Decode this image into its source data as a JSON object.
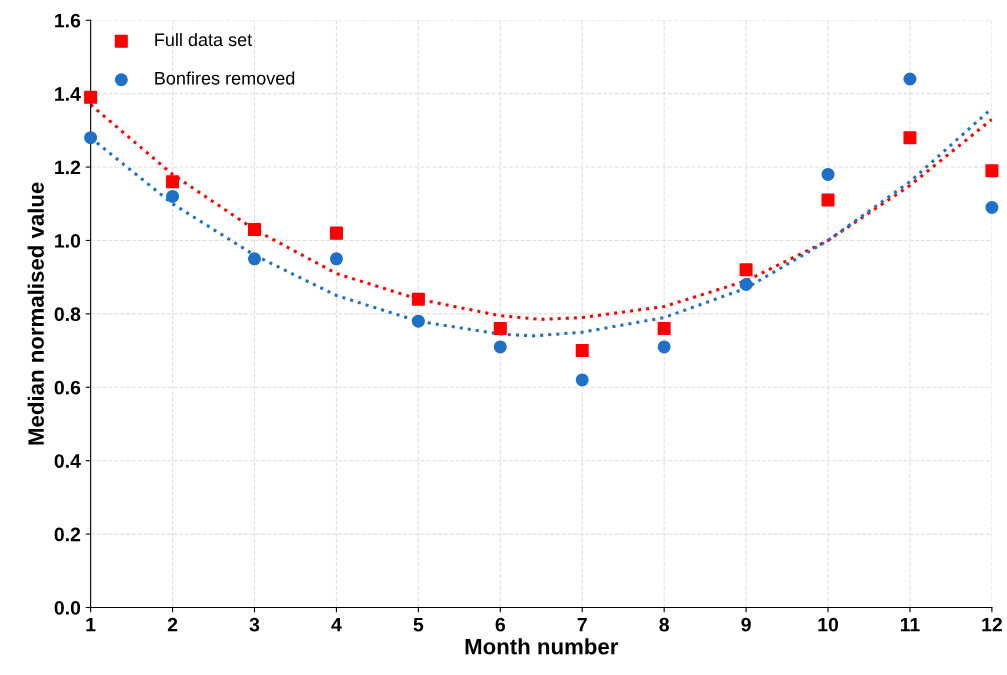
{
  "chart_data": {
    "type": "scatter",
    "xlabel": "Month number",
    "ylabel": "Median normalised value",
    "x": [
      1,
      2,
      3,
      4,
      5,
      6,
      7,
      8,
      9,
      10,
      11,
      12
    ],
    "series": [
      {
        "name": "Full data set",
        "color": "#ff0000",
        "marker": "square",
        "values": [
          1.39,
          1.16,
          1.03,
          1.02,
          0.84,
          0.76,
          0.7,
          0.76,
          0.92,
          1.11,
          1.28,
          1.19
        ]
      },
      {
        "name": "Bonfires removed",
        "color": "#1f70c8",
        "marker": "circle",
        "values": [
          1.28,
          1.12,
          0.95,
          0.95,
          0.78,
          0.71,
          0.62,
          0.71,
          0.88,
          1.18,
          1.44,
          1.09
        ]
      },
      {
        "type": "line",
        "color": "#ff0000",
        "line_style": "dotted",
        "marker": "none",
        "x": [
          1,
          2,
          3,
          4,
          5,
          6,
          6.5,
          7,
          8,
          9,
          10,
          11,
          12
        ],
        "values": [
          1.37,
          1.18,
          1.03,
          0.91,
          0.84,
          0.795,
          0.785,
          0.79,
          0.82,
          0.89,
          1.0,
          1.15,
          1.33
        ]
      },
      {
        "type": "line",
        "color": "#1f70c8",
        "line_style": "dotted",
        "marker": "none",
        "x": [
          1,
          2,
          3,
          4,
          5,
          6,
          6.4,
          7,
          8,
          9,
          10,
          11,
          12
        ],
        "values": [
          1.28,
          1.1,
          0.96,
          0.85,
          0.78,
          0.745,
          0.74,
          0.75,
          0.79,
          0.87,
          1.0,
          1.16,
          1.36
        ]
      }
    ],
    "xlim": [
      1,
      12
    ],
    "xticks": [
      1,
      2,
      3,
      4,
      5,
      6,
      7,
      8,
      9,
      10,
      11,
      12
    ],
    "ylim": [
      0,
      1.6
    ],
    "yticks": [
      {
        "value": 0,
        "label": "0.0"
      },
      {
        "value": 0.2,
        "label": "0.2"
      },
      {
        "value": 0.4,
        "label": "0.4"
      },
      {
        "value": 0.6,
        "label": "0.6"
      },
      {
        "value": 0.8,
        "label": "0.8"
      },
      {
        "value": 1.0,
        "label": "1.0"
      },
      {
        "value": 1.2,
        "label": "1.2"
      },
      {
        "value": 1.4,
        "label": "1.4"
      },
      {
        "value": 1.6,
        "label": "1.6"
      }
    ],
    "grid": true,
    "legend": "top left"
  }
}
